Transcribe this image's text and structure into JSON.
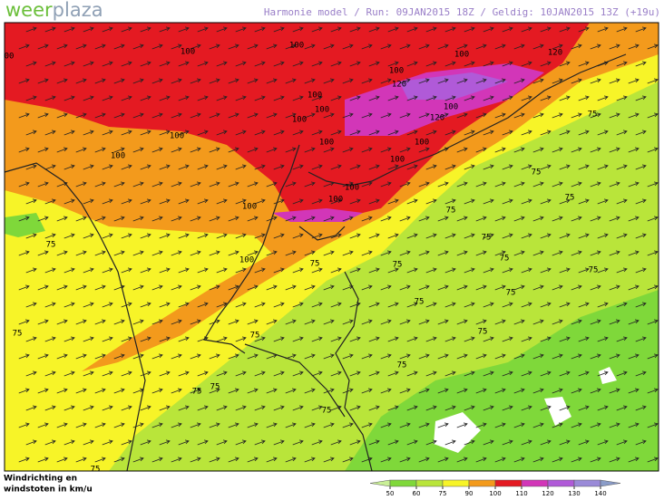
{
  "header": {
    "logo_left": "weer",
    "logo_right": "plaza",
    "title": "Harmonie model / Run: 09JAN2015 18Z / Geldig: 10JAN2015 13Z (+19u)"
  },
  "legend": {
    "label_line1": "Windrichting en",
    "label_line2": "windstoten in km/u",
    "ticks": [
      50,
      60,
      75,
      90,
      100,
      110,
      120,
      130,
      140
    ],
    "colors": [
      "#c9ef96",
      "#7fd83a",
      "#b9e53a",
      "#f7f428",
      "#f39a1c",
      "#e41a22",
      "#d236b8",
      "#b05ad8",
      "#9a8ad8",
      "#8a9cc8"
    ]
  },
  "contour_labels": [
    "100",
    "100",
    "00",
    "100",
    "100",
    "100",
    "100",
    "100",
    "100",
    "100",
    "100",
    "100",
    "100",
    "100",
    "100",
    "100",
    "100",
    "100",
    "120",
    "120",
    "120",
    "75",
    "75",
    "75",
    "75",
    "75",
    "75",
    "75",
    "75",
    "75",
    "75",
    "75",
    "75",
    "75",
    "75",
    "75",
    "75",
    "75",
    "75",
    "75",
    "75"
  ]
}
